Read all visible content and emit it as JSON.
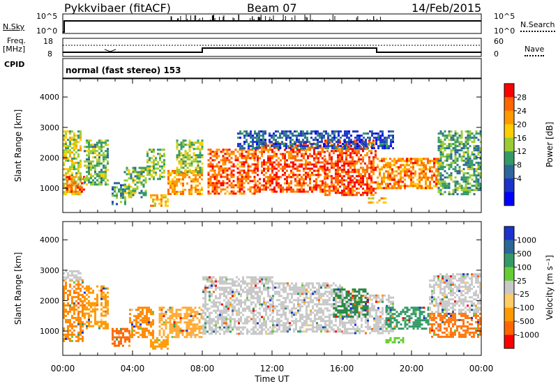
{
  "header": {
    "station": "Pykkvibaer (fitACF)",
    "beam": "Beam 07",
    "date": "14/Feb/2015"
  },
  "top_panels": {
    "nsky_label": "N.Sky",
    "nsky_ticks": [
      "10^5",
      "10^0"
    ],
    "nsearch_ticks": [
      "10^5",
      "10^0"
    ],
    "nsearch_label": "N.Search",
    "freq_label_1": "Freq.",
    "freq_label_2": "[MHz]",
    "freq_ticks": [
      "18",
      "8"
    ],
    "nave_ticks": [
      "60",
      "0"
    ],
    "nave_label": "Nave",
    "cpid_label": "CPID",
    "mode_text": "normal (fast stereo) 153"
  },
  "chart_data": [
    {
      "type": "heatmap",
      "panel": "power",
      "ylabel": "Slant Range [km]",
      "yticks": [
        "4000",
        "3000",
        "2000",
        "1000"
      ],
      "ylim": [
        200,
        4600
      ],
      "xlim": [
        0,
        24
      ],
      "colorbar_label": "Power [dB]",
      "colorbar_ticks": [
        "28",
        "24",
        "20",
        "16",
        "12",
        "8",
        "4"
      ],
      "colorbar_colors": [
        "#ff0000",
        "#ff6600",
        "#ff9900",
        "#ffcc00",
        "#99cc33",
        "#339966",
        "#2d6699",
        "#1a33cc",
        "#0000ff"
      ],
      "regions": [
        {
          "t0": 0.0,
          "t1": 1.0,
          "r0": 800,
          "r1": 2900,
          "level": 0.55
        },
        {
          "t0": 0.2,
          "t1": 1.2,
          "r0": 900,
          "r1": 1400,
          "level": 0.85
        },
        {
          "t0": 1.2,
          "t1": 2.6,
          "r0": 1100,
          "r1": 2600,
          "level": 0.45
        },
        {
          "t0": 2.8,
          "t1": 3.6,
          "r0": 500,
          "r1": 1200,
          "level": 0.35
        },
        {
          "t0": 3.5,
          "t1": 4.8,
          "r0": 700,
          "r1": 1700,
          "level": 0.45
        },
        {
          "t0": 4.8,
          "t1": 5.8,
          "r0": 1300,
          "r1": 2300,
          "level": 0.5
        },
        {
          "t0": 6.0,
          "t1": 8.0,
          "r0": 800,
          "r1": 1600,
          "level": 0.75
        },
        {
          "t0": 6.5,
          "t1": 8.0,
          "r0": 1500,
          "r1": 2600,
          "level": 0.5
        },
        {
          "t0": 5.0,
          "t1": 6.0,
          "r0": 400,
          "r1": 800,
          "level": 0.7
        },
        {
          "t0": 8.3,
          "t1": 11.0,
          "r0": 800,
          "r1": 2300,
          "level": 0.85
        },
        {
          "t0": 11.0,
          "t1": 15.0,
          "r0": 900,
          "r1": 2500,
          "level": 0.9
        },
        {
          "t0": 15.0,
          "t1": 18.0,
          "r0": 800,
          "r1": 2600,
          "level": 0.9
        },
        {
          "t0": 18.0,
          "t1": 21.5,
          "r0": 1000,
          "r1": 2000,
          "level": 0.8
        },
        {
          "t0": 21.5,
          "t1": 24.0,
          "r0": 800,
          "r1": 2900,
          "level": 0.4
        },
        {
          "t0": 10.0,
          "t1": 19.0,
          "r0": 2300,
          "r1": 2900,
          "level": 0.2
        },
        {
          "t0": 17.5,
          "t1": 18.5,
          "r0": 500,
          "r1": 700,
          "level": 0.7
        }
      ]
    },
    {
      "type": "heatmap",
      "panel": "velocity",
      "ylabel": "Slant Range [km]",
      "yticks": [
        "4000",
        "3000",
        "2000",
        "1000"
      ],
      "ylim": [
        200,
        4600
      ],
      "xlim": [
        0,
        24
      ],
      "xlabel": "Time UT",
      "xticks": [
        "00:00",
        "04:00",
        "08:00",
        "12:00",
        "16:00",
        "20:00",
        "00:00"
      ],
      "colorbar_label": "Velocity [m s⁻¹]",
      "colorbar_ticks": [
        "1000",
        "500",
        "100",
        "25",
        "-25",
        "-100",
        "-500",
        "-1000"
      ],
      "colorbar_colors": [
        "#1a33cc",
        "#2d6699",
        "#339966",
        "#66cc33",
        "#c8c8c8",
        "#ffcc66",
        "#ff9900",
        "#ff6600",
        "#ff0000"
      ],
      "regions": [
        {
          "t0": 0.0,
          "t1": 1.2,
          "r0": 700,
          "r1": 2700,
          "color": "#ff8800"
        },
        {
          "t0": 0.0,
          "t1": 1.0,
          "r0": 2700,
          "r1": 3000,
          "color": "#c8c8c8"
        },
        {
          "t0": 1.2,
          "t1": 2.6,
          "r0": 1100,
          "r1": 2500,
          "color": "#ff9900"
        },
        {
          "t0": 2.8,
          "t1": 3.8,
          "r0": 500,
          "r1": 1100,
          "color": "#ff6600"
        },
        {
          "t0": 3.8,
          "t1": 5.2,
          "r0": 800,
          "r1": 1800,
          "color": "#ff8800"
        },
        {
          "t0": 5.0,
          "t1": 6.0,
          "r0": 400,
          "r1": 800,
          "color": "#ff9900"
        },
        {
          "t0": 5.5,
          "t1": 8.0,
          "r0": 800,
          "r1": 1800,
          "color": "#ffaa33"
        },
        {
          "t0": 8.0,
          "t1": 12.0,
          "r0": 900,
          "r1": 2800,
          "color": "#c8c8c8"
        },
        {
          "t0": 12.0,
          "t1": 16.0,
          "r0": 1000,
          "r1": 2600,
          "color": "#c8c8c8"
        },
        {
          "t0": 16.0,
          "t1": 19.0,
          "r0": 900,
          "r1": 2200,
          "color": "#c8c8c8"
        },
        {
          "t0": 15.5,
          "t1": 17.5,
          "r0": 1500,
          "r1": 2400,
          "color": "#2d8a4a"
        },
        {
          "t0": 18.5,
          "t1": 21.0,
          "r0": 1100,
          "r1": 1800,
          "color": "#339966"
        },
        {
          "t0": 18.5,
          "t1": 19.5,
          "r0": 600,
          "r1": 800,
          "color": "#66cc33"
        },
        {
          "t0": 21.0,
          "t1": 24.0,
          "r0": 800,
          "r1": 1600,
          "color": "#ff7711"
        },
        {
          "t0": 21.0,
          "t1": 24.0,
          "r0": 1600,
          "r1": 2900,
          "color": "#c8c8c8"
        }
      ]
    }
  ]
}
